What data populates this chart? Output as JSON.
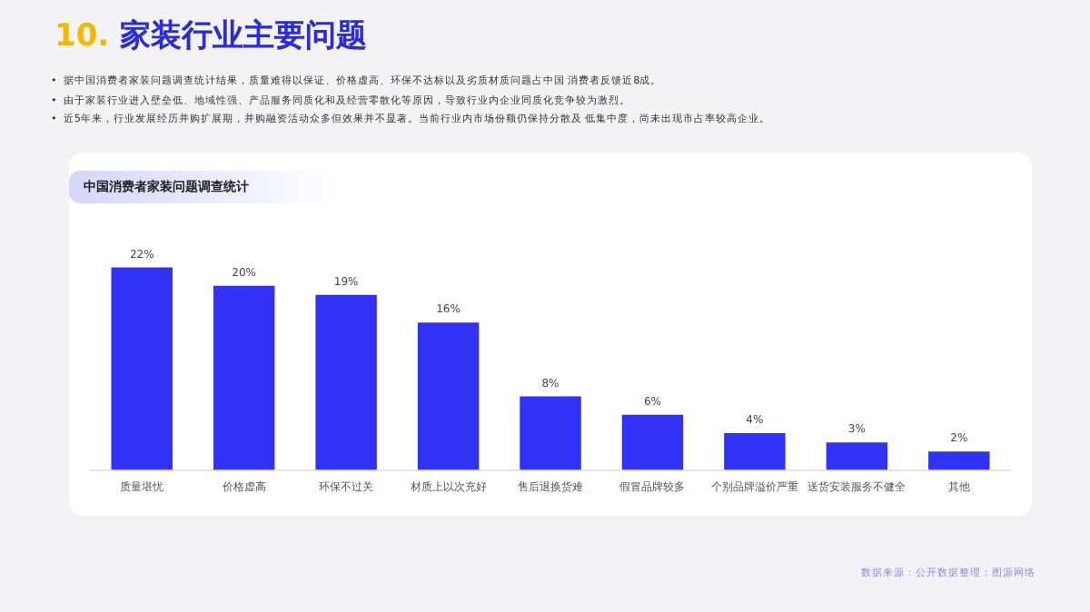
{
  "chart_data": {
    "type": "bar",
    "title": "中国消费者家装问题调查统计",
    "categories": [
      "质量堪忧",
      "价格虚高",
      "环保不过关",
      "材质上以次充好",
      "售后退换货难",
      "假冒品牌较多",
      "个别品牌溢价严重",
      "送货安装服务不健全",
      "其他"
    ],
    "values": [
      22,
      20,
      19,
      16,
      8,
      6,
      4,
      3,
      2
    ],
    "color": "#3232f6",
    "value_labels": [
      "22%",
      "20%",
      "19%",
      "16%",
      "8%",
      "6%",
      "4%",
      "3%",
      "2%"
    ],
    "grid": false,
    "legend": false,
    "tick_labels": "x",
    "annotations": [
      "10. 家装行业主要问题",
      "•  据中国消费者家装问题调查统计结果，质量难得以保证、价格虚高、环保不达标以及劣质材质问题占中国 消费者反馈近8成。",
      "•  由于家装行业进入壁垒低、地域性强、产品服务同质化和及经营零散化等原因，导致行业内企业同质化竞争较为激烈。",
      "•  近5年来，行业发展经历并购扩展期，并购融资活动众多但效果并不显著。当前行业内市场份额仍保持分散及 低集中度，尚未出现市占率较高企业。",
      "数据来源：公开数据整理；图源网络"
    ]
  }
}
